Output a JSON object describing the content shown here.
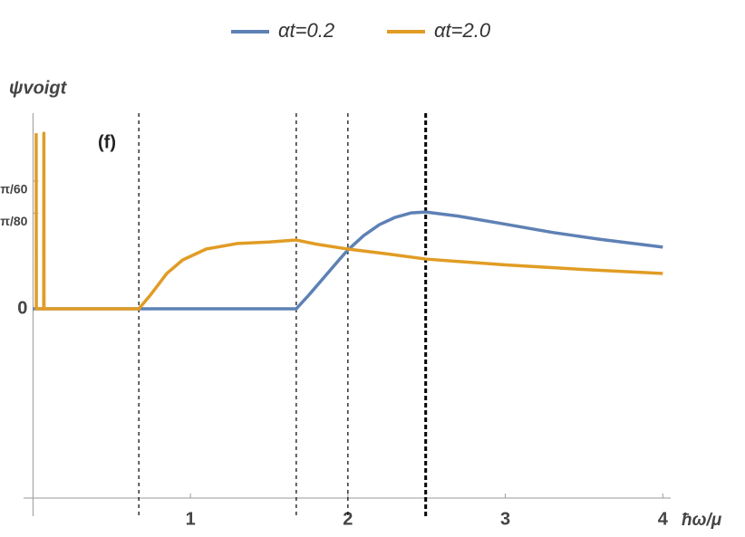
{
  "chart_data": {
    "type": "line",
    "xlabel": "ħω/μ",
    "ylabel": "ψvoigt",
    "annotation": "(f)",
    "xlim": [
      -0.06,
      4.05
    ],
    "ylim": [
      -0.0776,
      0.0802
    ],
    "xticks": [
      1,
      2,
      3,
      4
    ],
    "yticks": [
      0,
      {
        "value": 0.03927,
        "label": "π/80"
      },
      {
        "value": 0.05236,
        "label": "π/60"
      }
    ],
    "vlines": [
      0.672,
      1.672,
      2.0,
      2.494
    ],
    "legend": "top",
    "series": [
      {
        "name": "αt=0.2",
        "color": "#5e81b5",
        "x": [
          0,
          1.672,
          1.75,
          1.85,
          1.95,
          2.0,
          2.1,
          2.2,
          2.3,
          2.4,
          2.494,
          2.7,
          3.0,
          3.3,
          3.6,
          4.0
        ],
        "values": [
          0,
          0,
          0.0055,
          0.013,
          0.0205,
          0.0241,
          0.03,
          0.0345,
          0.0375,
          0.0393,
          0.0397,
          0.038,
          0.0347,
          0.0313,
          0.0285,
          0.0253
        ]
      },
      {
        "name": "αt=2.0",
        "color": "#e19c24",
        "x": [
          0.02,
          0.021,
          0.068,
          0.069,
          0.07,
          0.672,
          0.75,
          0.85,
          0.95,
          1.1,
          1.3,
          1.5,
          1.672,
          1.8,
          2.0,
          2.25,
          2.494,
          3.0,
          3.5,
          4.0
        ],
        "values": [
          0.072,
          0,
          0,
          0.072,
          0,
          0,
          0.006,
          0.0145,
          0.02,
          0.0245,
          0.0268,
          0.0274,
          0.0282,
          0.0265,
          0.0245,
          0.0225,
          0.0204,
          0.018,
          0.0161,
          0.0145
        ]
      }
    ]
  }
}
